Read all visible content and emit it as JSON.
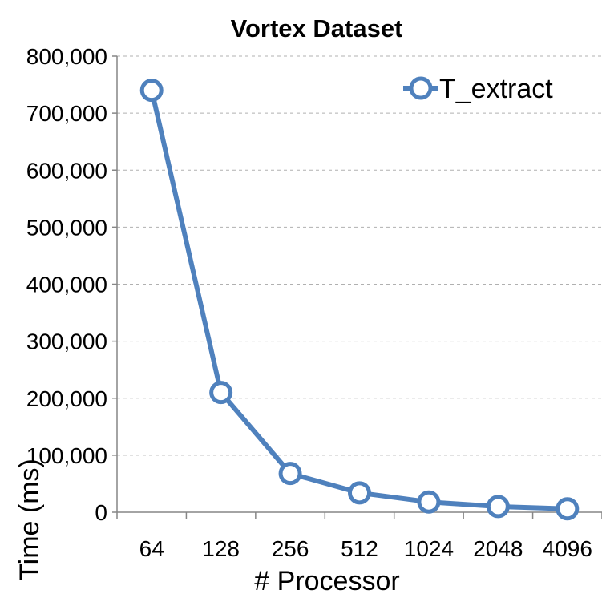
{
  "chart_data": {
    "type": "line",
    "title": "Vortex Dataset",
    "xlabel": "# Processor",
    "ylabel": "Time (ms)",
    "categories": [
      "64",
      "128",
      "256",
      "512",
      "1024",
      "2048",
      "4096"
    ],
    "y_tick_labels": [
      "0",
      "100,000",
      "200,000",
      "300,000",
      "400,000",
      "500,000",
      "600,000",
      "700,000",
      "800,000"
    ],
    "ylim": [
      0,
      800000
    ],
    "grid": "horizontal dashed",
    "legend_position": "top-right",
    "series": [
      {
        "name": "T_extract",
        "color": "#4F81BD",
        "values": [
          740000,
          210000,
          68000,
          34000,
          18000,
          10000,
          6000
        ]
      }
    ]
  }
}
